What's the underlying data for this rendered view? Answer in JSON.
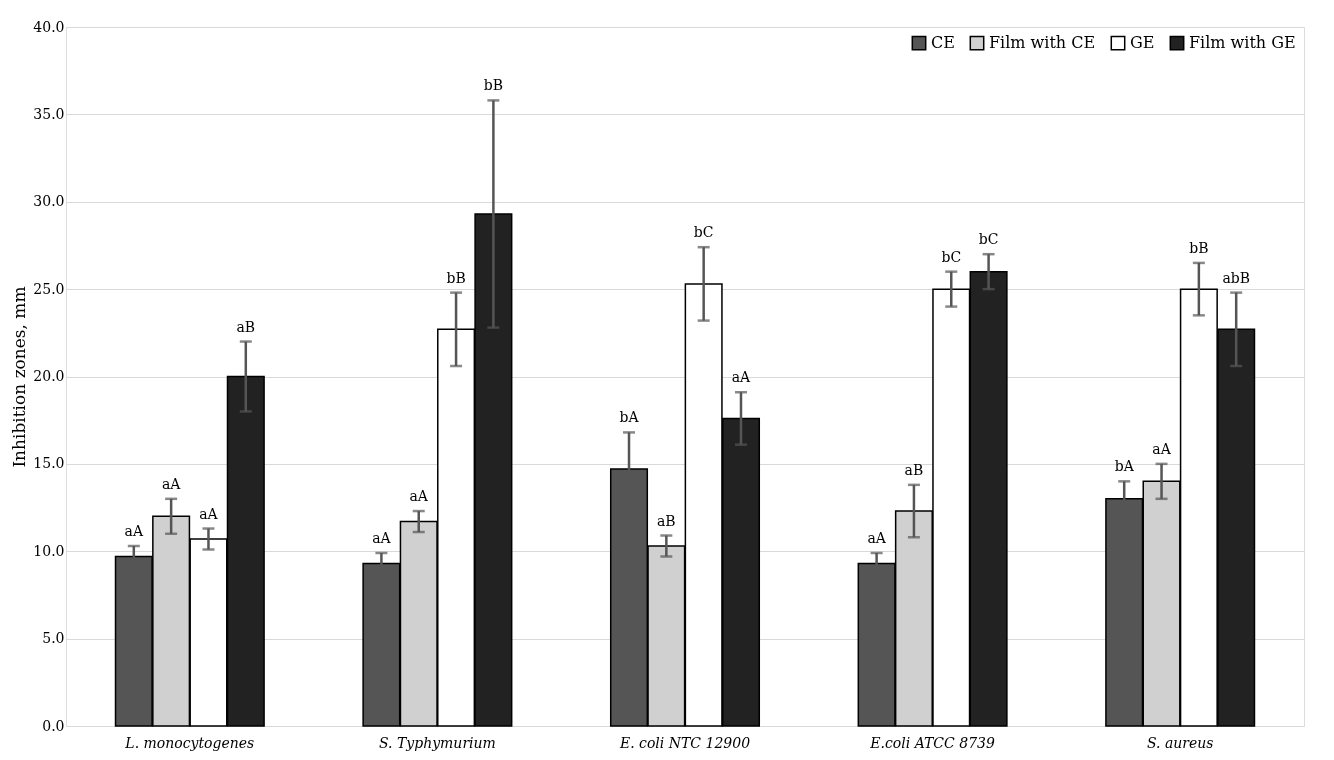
{
  "chart_data": {
    "type": "bar",
    "ylabel": "Inhibition zones, mm",
    "categories": [
      "L. monocytogenes",
      "S. Typhymurium",
      "E. coli NTC 12900",
      "E.coli ATCC 8739",
      "S. aureus"
    ],
    "series": [
      {
        "name": "CE",
        "color": "#555555",
        "values": [
          9.7,
          9.3,
          14.7,
          9.3,
          13.0
        ],
        "errors": [
          0.6,
          0.6,
          2.1,
          0.6,
          1.0
        ]
      },
      {
        "name": "Film with CE",
        "color": "#d0d0d0",
        "values": [
          12.0,
          11.7,
          10.3,
          12.3,
          14.0
        ],
        "errors": [
          1.0,
          0.6,
          0.6,
          1.5,
          1.0
        ]
      },
      {
        "name": "GE",
        "color": "#ffffff",
        "values": [
          10.7,
          22.7,
          25.3,
          25.0,
          25.0
        ],
        "errors": [
          0.6,
          2.1,
          2.1,
          1.0,
          1.5
        ]
      },
      {
        "name": "Film with GE",
        "color": "#222222",
        "values": [
          20.0,
          29.3,
          17.6,
          26.0,
          22.7
        ],
        "errors": [
          2.0,
          6.5,
          1.5,
          1.0,
          2.1
        ]
      }
    ],
    "ylim": [
      0,
      40
    ],
    "yticks": [
      {
        "value": 0,
        "label": "0.0"
      },
      {
        "value": 5,
        "label": "5.0"
      },
      {
        "value": 10,
        "label": "10.0"
      },
      {
        "value": 15,
        "label": "15.0"
      },
      {
        "value": 20,
        "label": "20.0"
      },
      {
        "value": 25,
        "label": "25.0"
      },
      {
        "value": 30,
        "label": "30.0"
      },
      {
        "value": 35,
        "label": "35.0"
      },
      {
        "value": 40,
        "label": "40.0"
      }
    ],
    "grid": "y",
    "legend": "top right",
    "annotations": [
      "aA",
      "aA",
      "aA",
      "aB",
      "aA",
      "aA",
      "bB",
      "bB",
      "bA",
      "aB",
      "bC",
      "aA",
      "aA",
      "aB",
      "bC",
      "bC",
      "bA",
      "aA",
      "bB",
      "abB"
    ]
  }
}
